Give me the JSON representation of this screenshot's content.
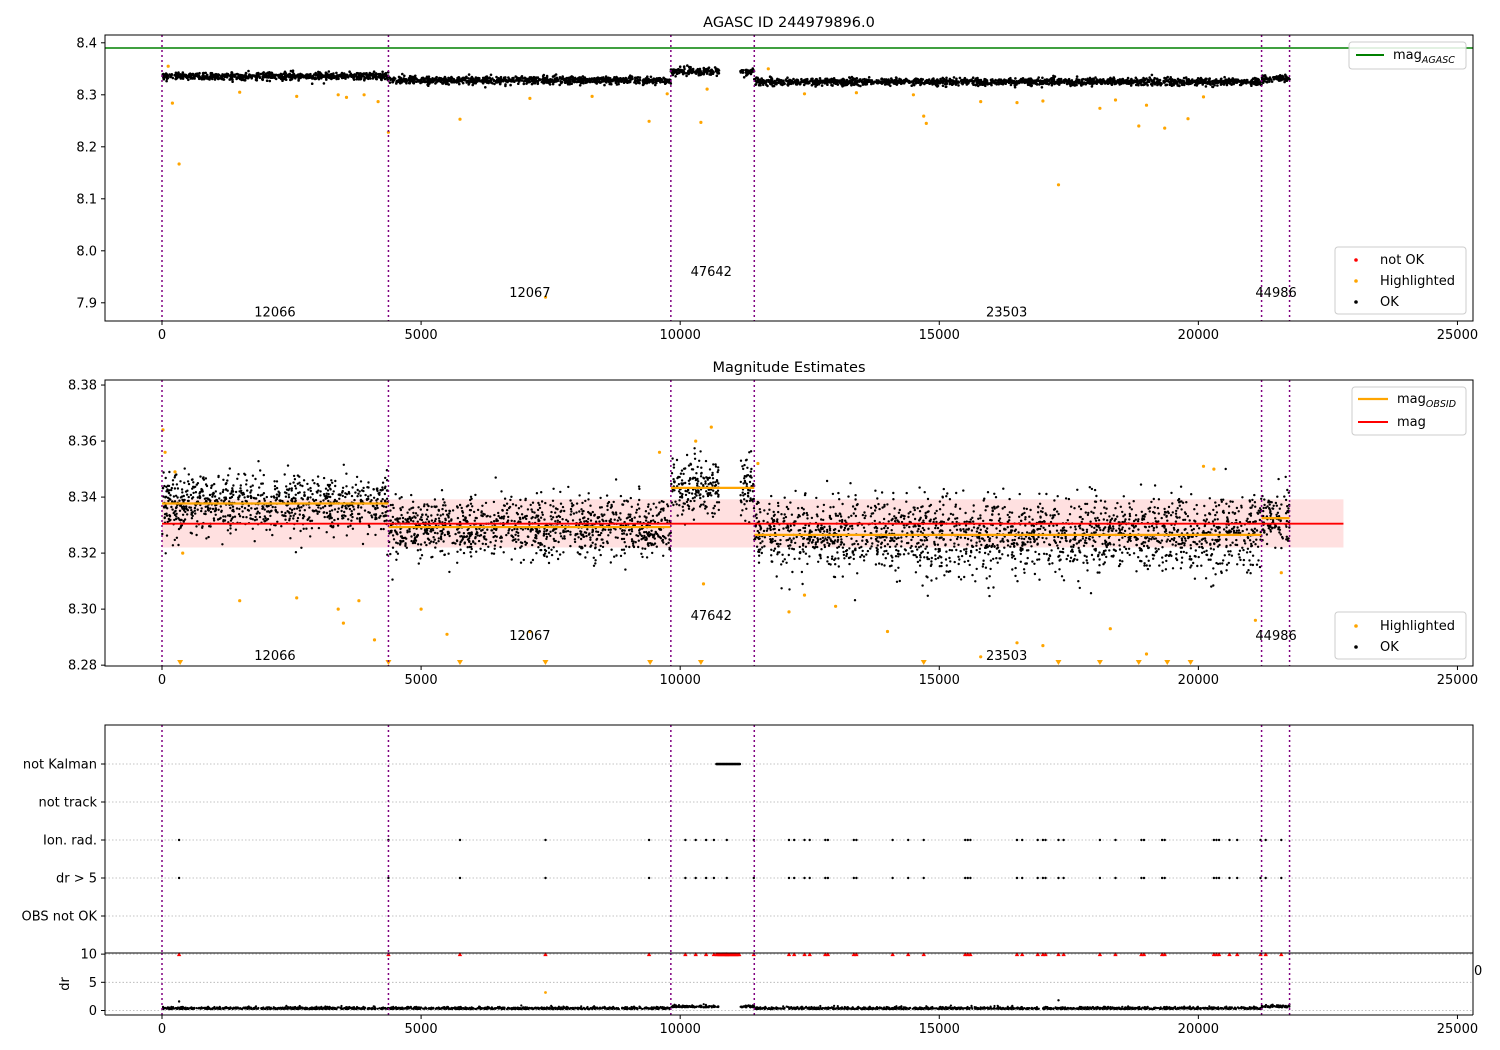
{
  "chart_data": [
    {
      "type": "scatter",
      "title": "AGASC ID 244979896.0",
      "xlim": [
        -1100,
        25300
      ],
      "ylim": [
        7.865,
        8.415
      ],
      "xticks": [
        0,
        5000,
        10000,
        15000,
        20000,
        25000
      ],
      "yticks": [
        7.9,
        8.0,
        8.1,
        8.2,
        8.3,
        8.4
      ],
      "ytick_labels": [
        "7.9",
        "8.0",
        "8.1",
        "8.2",
        "8.3",
        "8.4"
      ],
      "reference_lines": [
        {
          "label": "mag_AGASC",
          "name": "mag",
          "subscript": "AGASC",
          "y": 8.39,
          "color": "#008000"
        }
      ],
      "observation_boundaries": [
        0,
        4370,
        9820,
        11430,
        21220,
        21760
      ],
      "observations": [
        {
          "obsid": "12066",
          "x_start": 0,
          "x_end": 4370,
          "level": 8.336,
          "label_x": 2180,
          "label_y": 7.882
        },
        {
          "obsid": "12067",
          "x_start": 4370,
          "x_end": 9820,
          "level": 8.328,
          "label_x": 7100,
          "label_y": 7.92
        },
        {
          "obsid": "47642",
          "x_start": 9820,
          "x_end": 11430,
          "level": 8.345,
          "label_x": 10600,
          "label_y": 7.96
        },
        {
          "obsid": "23503",
          "x_start": 11430,
          "x_end": 21220,
          "level": 8.325,
          "label_x": 16300,
          "label_y": 7.882
        },
        {
          "obsid": "44986",
          "x_start": 21220,
          "x_end": 21760,
          "level": 8.331,
          "label_x": 21500,
          "label_y": 7.92
        }
      ],
      "gap": [
        10750,
        11160
      ],
      "highlighted_points": [
        [
          120,
          8.355
        ],
        [
          200,
          8.284
        ],
        [
          330,
          8.167
        ],
        [
          1500,
          8.305
        ],
        [
          2600,
          8.297
        ],
        [
          3400,
          8.3
        ],
        [
          3560,
          8.295
        ],
        [
          3900,
          8.3
        ],
        [
          4170,
          8.287
        ],
        [
          4370,
          8.228
        ],
        [
          5750,
          8.253
        ],
        [
          7100,
          8.293
        ],
        [
          7400,
          7.911
        ],
        [
          8300,
          8.297
        ],
        [
          9400,
          8.249
        ],
        [
          9750,
          8.302
        ],
        [
          10400,
          8.247
        ],
        [
          10520,
          8.311
        ],
        [
          11700,
          8.35
        ],
        [
          12400,
          8.302
        ],
        [
          13400,
          8.304
        ],
        [
          14500,
          8.3
        ],
        [
          14700,
          8.259
        ],
        [
          14750,
          8.245
        ],
        [
          15800,
          8.287
        ],
        [
          16500,
          8.285
        ],
        [
          17000,
          8.288
        ],
        [
          17300,
          8.127
        ],
        [
          18100,
          8.274
        ],
        [
          18400,
          8.29
        ],
        [
          18850,
          8.24
        ],
        [
          19000,
          8.28
        ],
        [
          19350,
          8.236
        ],
        [
          19800,
          8.254
        ],
        [
          20100,
          8.296
        ]
      ],
      "legend": [
        {
          "label": "not OK",
          "color": "#ff0000"
        },
        {
          "label": "Highlighted",
          "color": "#ffa500"
        },
        {
          "label": "OK",
          "color": "#000000"
        }
      ]
    },
    {
      "type": "scatter",
      "title": "Magnitude Estimates",
      "xlim": [
        -1100,
        25300
      ],
      "ylim": [
        8.2797,
        8.3818
      ],
      "xticks": [
        0,
        5000,
        10000,
        15000,
        20000,
        25000
      ],
      "yticks": [
        8.28,
        8.3,
        8.32,
        8.34,
        8.36,
        8.38
      ],
      "ytick_labels": [
        "8.28",
        "8.30",
        "8.32",
        "8.34",
        "8.36",
        "8.38"
      ],
      "mean_mag": 8.3305,
      "mean_band": [
        8.322,
        8.3392
      ],
      "band_x": [
        0,
        22800
      ],
      "segment_means": [
        {
          "x_start": 0,
          "x_end": 4370,
          "y": 8.3377
        },
        {
          "x_start": 4370,
          "x_end": 9820,
          "y": 8.3293
        },
        {
          "x_start": 9820,
          "x_end": 11430,
          "y": 8.3433
        },
        {
          "x_start": 11430,
          "x_end": 21220,
          "y": 8.3265
        },
        {
          "x_start": 21220,
          "x_end": 21760,
          "y": 8.3325
        }
      ],
      "observation_boundaries": [
        0,
        4370,
        9820,
        11430,
        21220,
        21760
      ],
      "obsid_labels": [
        {
          "obsid": "12066",
          "x": 2180,
          "y": 8.2835
        },
        {
          "obsid": "12067",
          "x": 7100,
          "y": 8.2906
        },
        {
          "obsid": "47642",
          "x": 10600,
          "y": 8.2977
        },
        {
          "obsid": "23503",
          "x": 16300,
          "y": 8.2835
        },
        {
          "obsid": "44986",
          "x": 21500,
          "y": 8.2906
        }
      ],
      "highlighted_points": [
        [
          20,
          8.364
        ],
        [
          60,
          8.356
        ],
        [
          250,
          8.349
        ],
        [
          400,
          8.32
        ],
        [
          1500,
          8.303
        ],
        [
          2600,
          8.304
        ],
        [
          3400,
          8.3
        ],
        [
          3500,
          8.295
        ],
        [
          3800,
          8.303
        ],
        [
          4100,
          8.289
        ],
        [
          5000,
          8.3
        ],
        [
          5500,
          8.291
        ],
        [
          7100,
          8.292
        ],
        [
          9600,
          8.356
        ],
        [
          10300,
          8.36
        ],
        [
          10450,
          8.309
        ],
        [
          10600,
          8.365
        ],
        [
          11500,
          8.352
        ],
        [
          12100,
          8.299
        ],
        [
          12400,
          8.305
        ],
        [
          13000,
          8.301
        ],
        [
          14000,
          8.292
        ],
        [
          15800,
          8.283
        ],
        [
          16500,
          8.288
        ],
        [
          17000,
          8.287
        ],
        [
          18300,
          8.293
        ],
        [
          19000,
          8.284
        ],
        [
          20100,
          8.351
        ],
        [
          20300,
          8.35
        ],
        [
          21100,
          8.296
        ],
        [
          21600,
          8.313
        ]
      ],
      "clipped_points_x": [
        350,
        4370,
        5750,
        7400,
        9420,
        10400,
        14700,
        17300,
        18100,
        18850,
        19400,
        19850
      ],
      "legend": [
        {
          "label": "mag_OBSID",
          "name": "mag",
          "subscript": "OBSID",
          "color": "#ffa500"
        },
        {
          "label": "mag",
          "color": "#ff0000"
        },
        {
          "label": "Highlighted",
          "color": "#ffa500"
        },
        {
          "label": "OK",
          "color": "#000000"
        }
      ]
    },
    {
      "type": "scatter",
      "xlim": [
        -1100,
        25300
      ],
      "flag_rows": [
        "not Kalman",
        "not track",
        "Ion. rad.",
        "dr > 5",
        "OBS not OK"
      ],
      "flag_events": {
        "not Kalman": {
          "range": [
            10700,
            11150
          ]
        },
        "Ion. rad.": {
          "x": [
            330,
            4370,
            5750,
            7400,
            9400,
            10100,
            10300,
            10500,
            10650,
            10900,
            11420,
            12100,
            12200,
            12400,
            12500,
            12800,
            12850,
            13350,
            13400,
            14100,
            14400,
            14700,
            15500,
            15550,
            15600,
            16500,
            16600,
            16900,
            17000,
            17050,
            17300,
            17400,
            18100,
            18400,
            18900,
            18950,
            19300,
            19350,
            20300,
            20350,
            20400,
            20600,
            20750,
            21200,
            21300,
            21600
          ]
        }
      },
      "dr_axis": {
        "ylabel": "dr",
        "ylim": [
          -0.8,
          10.2
        ],
        "yticks": [
          0,
          5,
          10
        ],
        "ytick_labels": [
          "0",
          "5",
          "10"
        ],
        "clipped_marker_y": 10
      },
      "observation_boundaries": [
        0,
        4370,
        9820,
        11430,
        21220,
        21760
      ],
      "stray_tick_label": "0"
    }
  ]
}
